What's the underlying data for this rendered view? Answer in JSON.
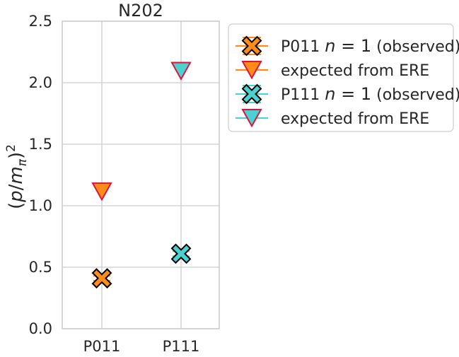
{
  "chart_data": {
    "type": "scatter",
    "title": "N202",
    "ylabel_html": "(p/m_π)²",
    "ylabel_parts": {
      "open": "(",
      "p": "p",
      "slash": "/",
      "m": "m",
      "sub": "π",
      "close": ")",
      "sup": "2"
    },
    "categories": [
      "P011",
      "P111"
    ],
    "ylim": [
      0,
      2.5
    ],
    "yticks": [
      "0.0",
      "0.5",
      "1.0",
      "1.5",
      "2.0",
      "2.5"
    ],
    "grid": true,
    "legend_placement": "outside-upper-right",
    "series": [
      {
        "kind": "observed",
        "category": "P011",
        "value": 0.41,
        "error": 0.02,
        "color": "#ff8c1a",
        "marker": "X",
        "label_parts": {
          "pre": "P011 ",
          "n": "n",
          "eq": " = 1",
          "post": " (observed)"
        }
      },
      {
        "kind": "expected",
        "category": "P011",
        "value": 1.12,
        "color": "#ff8c1a",
        "marker": "v",
        "label_parts": {
          "pre": "expected from ERE"
        }
      },
      {
        "kind": "observed",
        "category": "P111",
        "value": 0.61,
        "error": 0.02,
        "color": "#4dd0d0",
        "marker": "X",
        "label_parts": {
          "pre": "P111 ",
          "n": "n",
          "eq": " = 1",
          "post": " (observed)"
        }
      },
      {
        "kind": "expected",
        "category": "P111",
        "value": 2.1,
        "color": "#4dd0d0",
        "marker": "v",
        "label_parts": {
          "pre": "expected from ERE"
        }
      }
    ],
    "colors": {
      "edge_observed": "#000000",
      "edge_expected": "#dc143c",
      "orange_line": "#ff8c1a",
      "cyan_line": "#4dd0d0"
    }
  }
}
